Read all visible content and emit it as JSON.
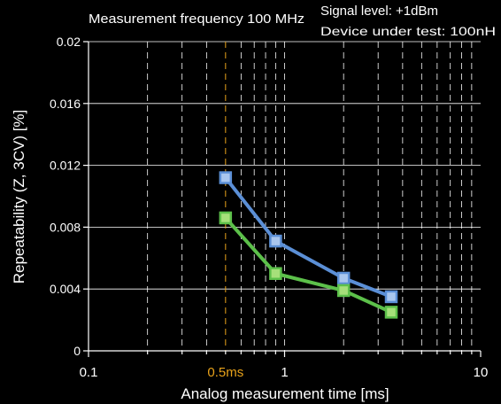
{
  "chart_data": {
    "type": "line",
    "title": "",
    "annotations": {
      "measurement_frequency": "Measurement frequency  100 MHz",
      "signal_level": "Signal level: +1dBm",
      "device_under_test": "Device under test: 100nH"
    },
    "xlabel": "Analog measurement time [ms]",
    "ylabel": "Repeatability (Z, 3CV) [%]",
    "x_scale": "log",
    "xlim": [
      0.1,
      10
    ],
    "ylim": [
      0,
      0.02
    ],
    "x_ticks": [
      {
        "value": 0.1,
        "label": "0.1"
      },
      {
        "value": 0.5,
        "label": "0.5ms",
        "highlight": true
      },
      {
        "value": 1,
        "label": "1"
      },
      {
        "value": 10,
        "label": "10"
      }
    ],
    "y_ticks": [
      {
        "value": 0,
        "label": "0"
      },
      {
        "value": 0.004,
        "label": "0.004"
      },
      {
        "value": 0.008,
        "label": "0.008"
      },
      {
        "value": 0.012,
        "label": "0.012"
      },
      {
        "value": 0.016,
        "label": "0.016"
      },
      {
        "value": 0.02,
        "label": "0.02"
      }
    ],
    "grid": {
      "horizontal": true,
      "vertical_minor_dashed": true
    },
    "highlight_line": {
      "x": 0.5,
      "color": "#e8a21a"
    },
    "series": [
      {
        "color": "#5b8fd6",
        "marker_fill": "#a9c6ee",
        "x": [
          0.5,
          0.9,
          2.0,
          3.5
        ],
        "y": [
          0.0112,
          0.0071,
          0.0047,
          0.0035
        ]
      },
      {
        "color": "#5cc04a",
        "marker_fill": "#a6e07a",
        "x": [
          0.5,
          0.9,
          2.0,
          3.5
        ],
        "y": [
          0.0086,
          0.005,
          0.0039,
          0.0025
        ]
      }
    ]
  }
}
